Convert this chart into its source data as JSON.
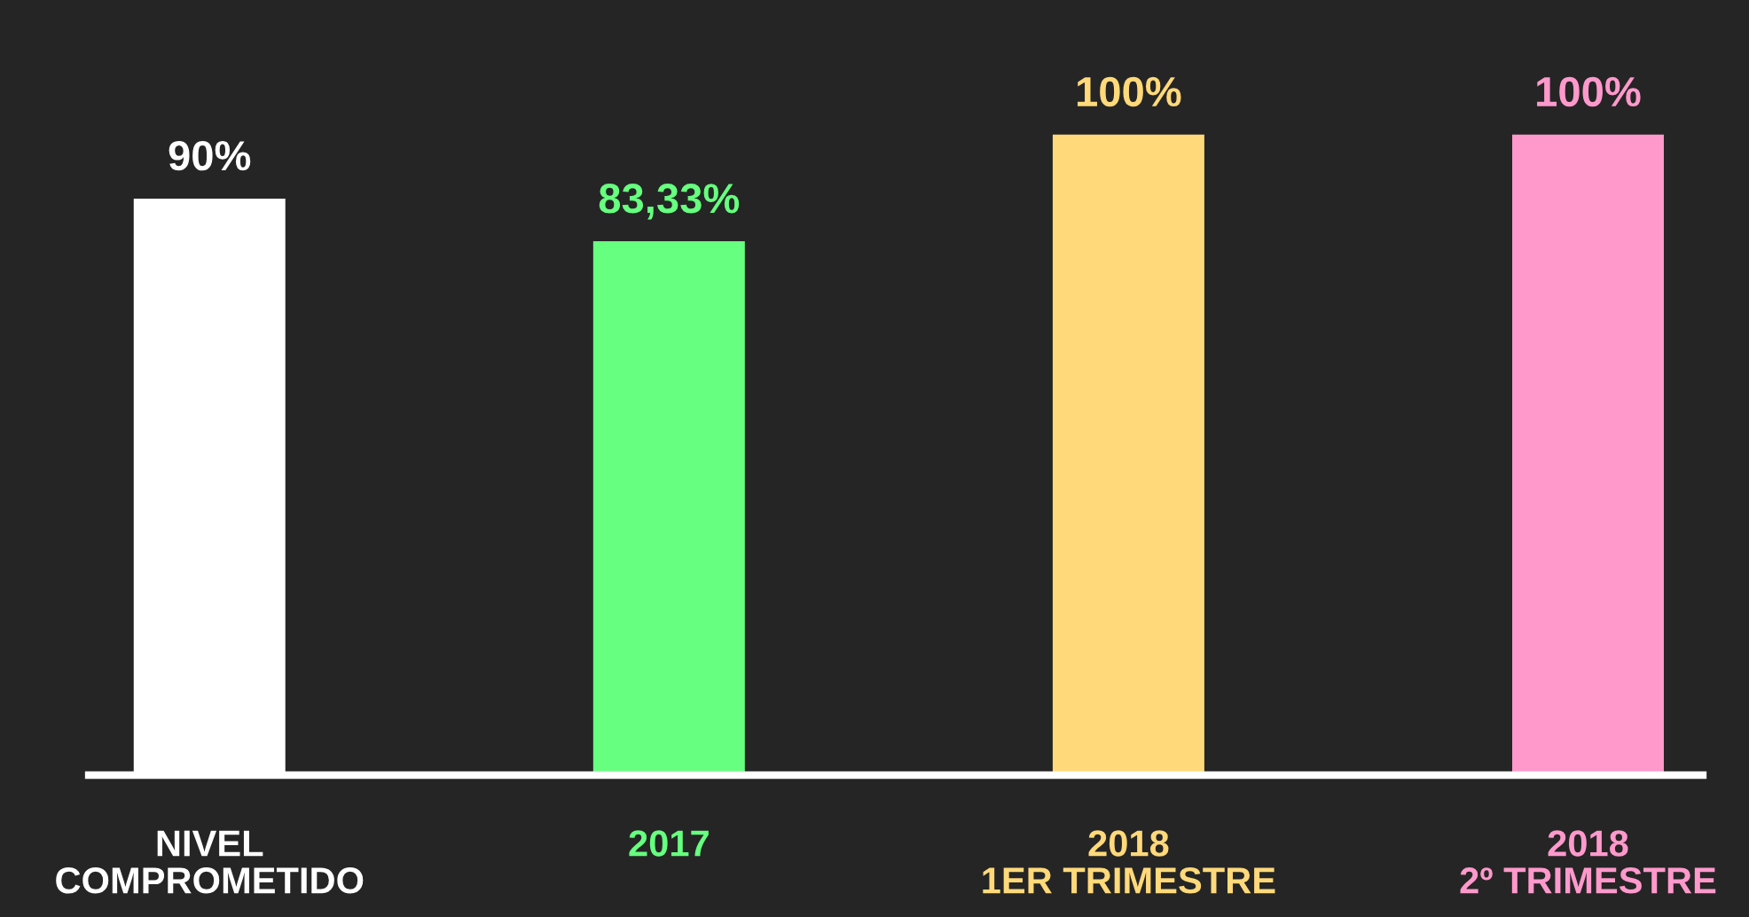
{
  "chart_data": {
    "type": "bar",
    "categories": [
      "NIVEL\nCOMPROMETIDO",
      "2017",
      "2018\n1ER TRIMESTRE",
      "2018\n2º TRIMESTRE"
    ],
    "values": [
      90,
      83.33,
      100,
      100
    ],
    "value_labels": [
      "90%",
      "83,33%",
      "100%",
      "100%"
    ],
    "colors": [
      "#ffffff",
      "#66ff7f",
      "#ffd97a",
      "#ff99cc"
    ],
    "grid": false,
    "legend": false
  }
}
